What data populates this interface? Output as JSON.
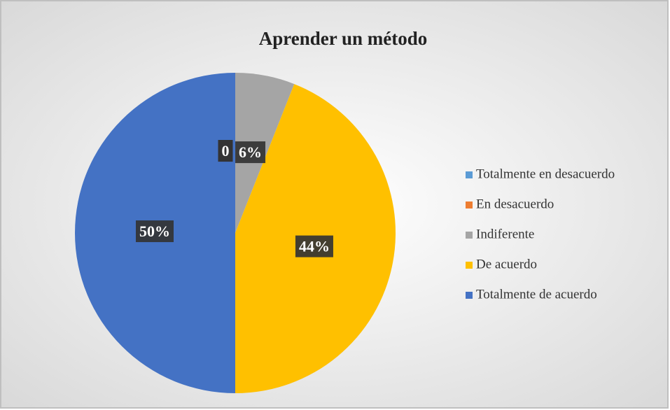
{
  "chart_data": {
    "type": "pie",
    "title": "Aprender un método",
    "categories": [
      "Totalmente en desacuerdo",
      "En desacuerdo",
      "Indiferente",
      "De acuerdo",
      "Totalmente de acuerdo"
    ],
    "values": [
      0,
      0,
      6,
      44,
      50
    ],
    "value_labels": [
      "0",
      "0",
      "6%",
      "44%",
      "50%"
    ],
    "colors": [
      "#5b9bd5",
      "#ed7d31",
      "#a5a5a5",
      "#ffc000",
      "#4472c4"
    ],
    "legend": "right"
  }
}
